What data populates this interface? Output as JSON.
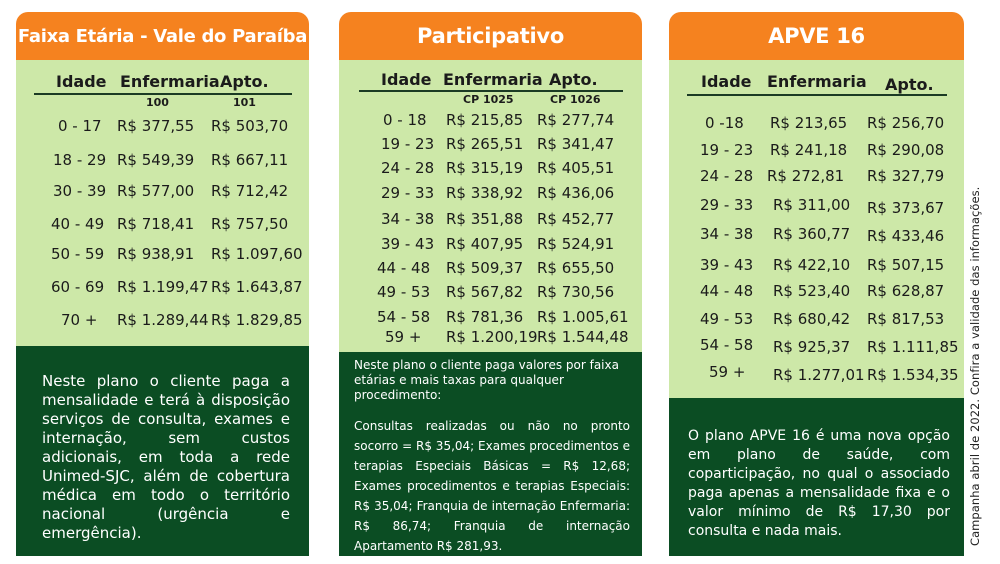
{
  "cards": [
    {
      "title": "Faixa Etária - Vale do Paraíba",
      "headers": [
        "Idade",
        "Enfermaria",
        "Apto."
      ],
      "codes": [
        "100",
        "101"
      ],
      "rows": [
        [
          "0 - 17",
          "R$ 377,55",
          "R$ 503,70"
        ],
        [
          "18 - 29",
          "R$ 549,39",
          "R$ 667,11"
        ],
        [
          "30 - 39",
          "R$ 577,00",
          "R$ 712,42"
        ],
        [
          "40 - 49",
          "R$ 718,41",
          "R$ 757,50"
        ],
        [
          "50 - 59",
          "R$ 938,91",
          "R$ 1.097,60"
        ],
        [
          "60 - 69",
          "R$ 1.199,47",
          "R$ 1.643,87"
        ],
        [
          "70 +",
          "R$ 1.289,44",
          "R$ 1.829,85"
        ]
      ],
      "note": [
        "Neste plano o cliente paga a mensalidade e terá à disposição serviços de consulta, exames e internação, sem custos adicionais, em toda a rede Unimed-SJC, além de cobertura médica em todo o território nacional (urgência e emergência)."
      ]
    },
    {
      "title": "Participativo",
      "headers": [
        "Idade",
        "Enfermaria",
        "Apto."
      ],
      "codes": [
        "CP 1025",
        "CP 1026"
      ],
      "rows": [
        [
          "0 - 18",
          "R$ 215,85",
          "R$ 277,74"
        ],
        [
          "19 - 23",
          "R$ 265,51",
          "R$ 341,47"
        ],
        [
          "24 - 28",
          "R$ 315,19",
          "R$ 405,51"
        ],
        [
          "29 - 33",
          "R$ 338,92",
          "R$ 436,06"
        ],
        [
          "34 - 38",
          "R$ 351,88",
          "R$ 452,77"
        ],
        [
          "39 - 43",
          "R$ 407,95",
          "R$ 524,91"
        ],
        [
          "44 - 48",
          "R$ 509,37",
          "R$ 655,50"
        ],
        [
          "49 - 53",
          "R$ 567,82",
          "R$ 730,56"
        ],
        [
          "54 - 58",
          "R$ 781,36",
          "R$ 1.005,61"
        ],
        [
          "59 +",
          "R$ 1.200,19",
          "R$ 1.544,48"
        ]
      ],
      "note": [
        "Neste plano o cliente paga valores por faixa etárias e mais taxas para qualquer procedimento:",
        "Consultas realizadas ou não no pronto socorro = R$ 35,04; Exames procedimentos e terapias Especiais Básicas = R$ 12,68; Exames procedimentos e terapias Especiais: R$ 35,04; Franquia de internação Enfermaria: R$ 86,74; Franquia de internação Apartamento R$ 281,93."
      ]
    },
    {
      "title": "APVE 16",
      "headers": [
        "Idade",
        "Enfermaria",
        "Apto."
      ],
      "codes": [],
      "rows": [
        [
          "0 -18",
          "R$ 213,65",
          "R$ 256,70"
        ],
        [
          "19 - 23",
          "R$ 241,18",
          "R$ 290,08"
        ],
        [
          "24 - 28",
          "R$ 272,81",
          "R$ 327,79"
        ],
        [
          "29 - 33",
          "R$ 311,00",
          "R$ 373,67"
        ],
        [
          "34 - 38",
          "R$ 360,77",
          "R$ 433,46"
        ],
        [
          "39 - 43",
          "R$ 422,10",
          "R$ 507,15"
        ],
        [
          "44 - 48",
          "R$ 523,40",
          "R$ 628,87"
        ],
        [
          "49 - 53",
          "R$ 680,42",
          "R$ 817,53"
        ],
        [
          "54 - 58",
          "R$ 925,37",
          "R$ 1.111,85"
        ],
        [
          "59 +",
          "R$ 1.277,01",
          "R$ 1.534,35"
        ]
      ],
      "note": [
        "O plano APVE 16 é uma nova opção em plano de saúde, com coparticipação, no qual o associado paga apenas a mensalidade fixa e o valor mínimo de R$ 17,30 por consulta e nada mais."
      ]
    }
  ],
  "side_note": "Campanha abril de 2022. Confira a validade das informações.",
  "colors": {
    "header": "#f5821f",
    "table": "#cde8a8",
    "note": "#0b4d23"
  }
}
